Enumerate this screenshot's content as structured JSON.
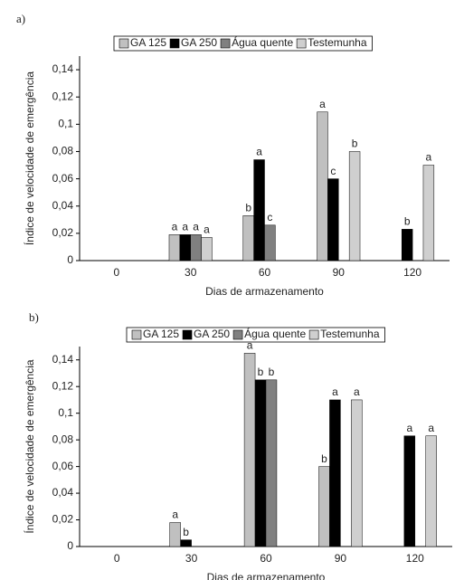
{
  "chart_data": [
    {
      "type": "bar",
      "panel": "a)",
      "x_label": "Dias de armazenamento",
      "y_label": "Índice de velocidade de emergência",
      "categories": [
        "0",
        "30",
        "60",
        "90",
        "120"
      ],
      "ylim": [
        0,
        0.15
      ],
      "yticks": [
        0,
        {
          "value": 0.02,
          "label": "0,02"
        },
        {
          "value": 0.04,
          "label": "0,04"
        },
        {
          "value": 0.06,
          "label": "0,06"
        },
        {
          "value": 0.08,
          "label": "0,08"
        },
        {
          "value": 0.1,
          "label": "0,1"
        },
        {
          "value": 0.12,
          "label": "0,12"
        },
        {
          "value": 0.14,
          "label": "0,14"
        }
      ],
      "series": [
        {
          "name": "GA 125",
          "color": "#c0c0c0",
          "values": [
            0,
            0.019,
            0.033,
            0.109,
            0
          ],
          "letters": [
            null,
            "a",
            "b",
            "a",
            null
          ]
        },
        {
          "name": "GA 250",
          "color": "#000000",
          "values": [
            0,
            0.019,
            0.074,
            0.06,
            0.023
          ],
          "letters": [
            null,
            "a",
            "a",
            "c",
            "b"
          ]
        },
        {
          "name": "Água quente",
          "color": "#808080",
          "values": [
            0,
            0.019,
            0.026,
            0,
            0
          ],
          "letters": [
            null,
            "a",
            "c",
            null,
            null
          ]
        },
        {
          "name": "Testemunha",
          "color": "#cfcfcf",
          "values": [
            0,
            0.017,
            0,
            0.08,
            0.07
          ],
          "letters": [
            null,
            "a",
            null,
            "b",
            "a"
          ]
        }
      ]
    },
    {
      "type": "bar",
      "panel": "b)",
      "x_label": "Dias de armazenamento",
      "y_label": "Índice de velocidade de emergência",
      "categories": [
        "0",
        "30",
        "60",
        "90",
        "120"
      ],
      "ylim": [
        0,
        0.15
      ],
      "yticks": [
        0,
        {
          "value": 0.02,
          "label": "0,02"
        },
        {
          "value": 0.04,
          "label": "0,04"
        },
        {
          "value": 0.06,
          "label": "0,06"
        },
        {
          "value": 0.08,
          "label": "0,08"
        },
        {
          "value": 0.1,
          "label": "0,1"
        },
        {
          "value": 0.12,
          "label": "0,12"
        },
        {
          "value": 0.14,
          "label": "0,14"
        }
      ],
      "series": [
        {
          "name": "GA 125",
          "color": "#c0c0c0",
          "values": [
            0,
            0.018,
            0.145,
            0.06,
            0
          ],
          "letters": [
            null,
            "a",
            "a",
            "b",
            null
          ]
        },
        {
          "name": "GA 250",
          "color": "#000000",
          "values": [
            0,
            0.005,
            0.125,
            0.11,
            0.083
          ],
          "letters": [
            null,
            "b",
            "b",
            "a",
            "a"
          ]
        },
        {
          "name": "Água quente",
          "color": "#808080",
          "values": [
            0,
            0,
            0.125,
            0,
            0
          ],
          "letters": [
            null,
            null,
            "b",
            null,
            null
          ]
        },
        {
          "name": "Testemunha",
          "color": "#cfcfcf",
          "values": [
            0,
            0,
            0,
            0.11,
            0.083
          ],
          "letters": [
            null,
            null,
            null,
            "a",
            "a"
          ]
        }
      ]
    }
  ]
}
